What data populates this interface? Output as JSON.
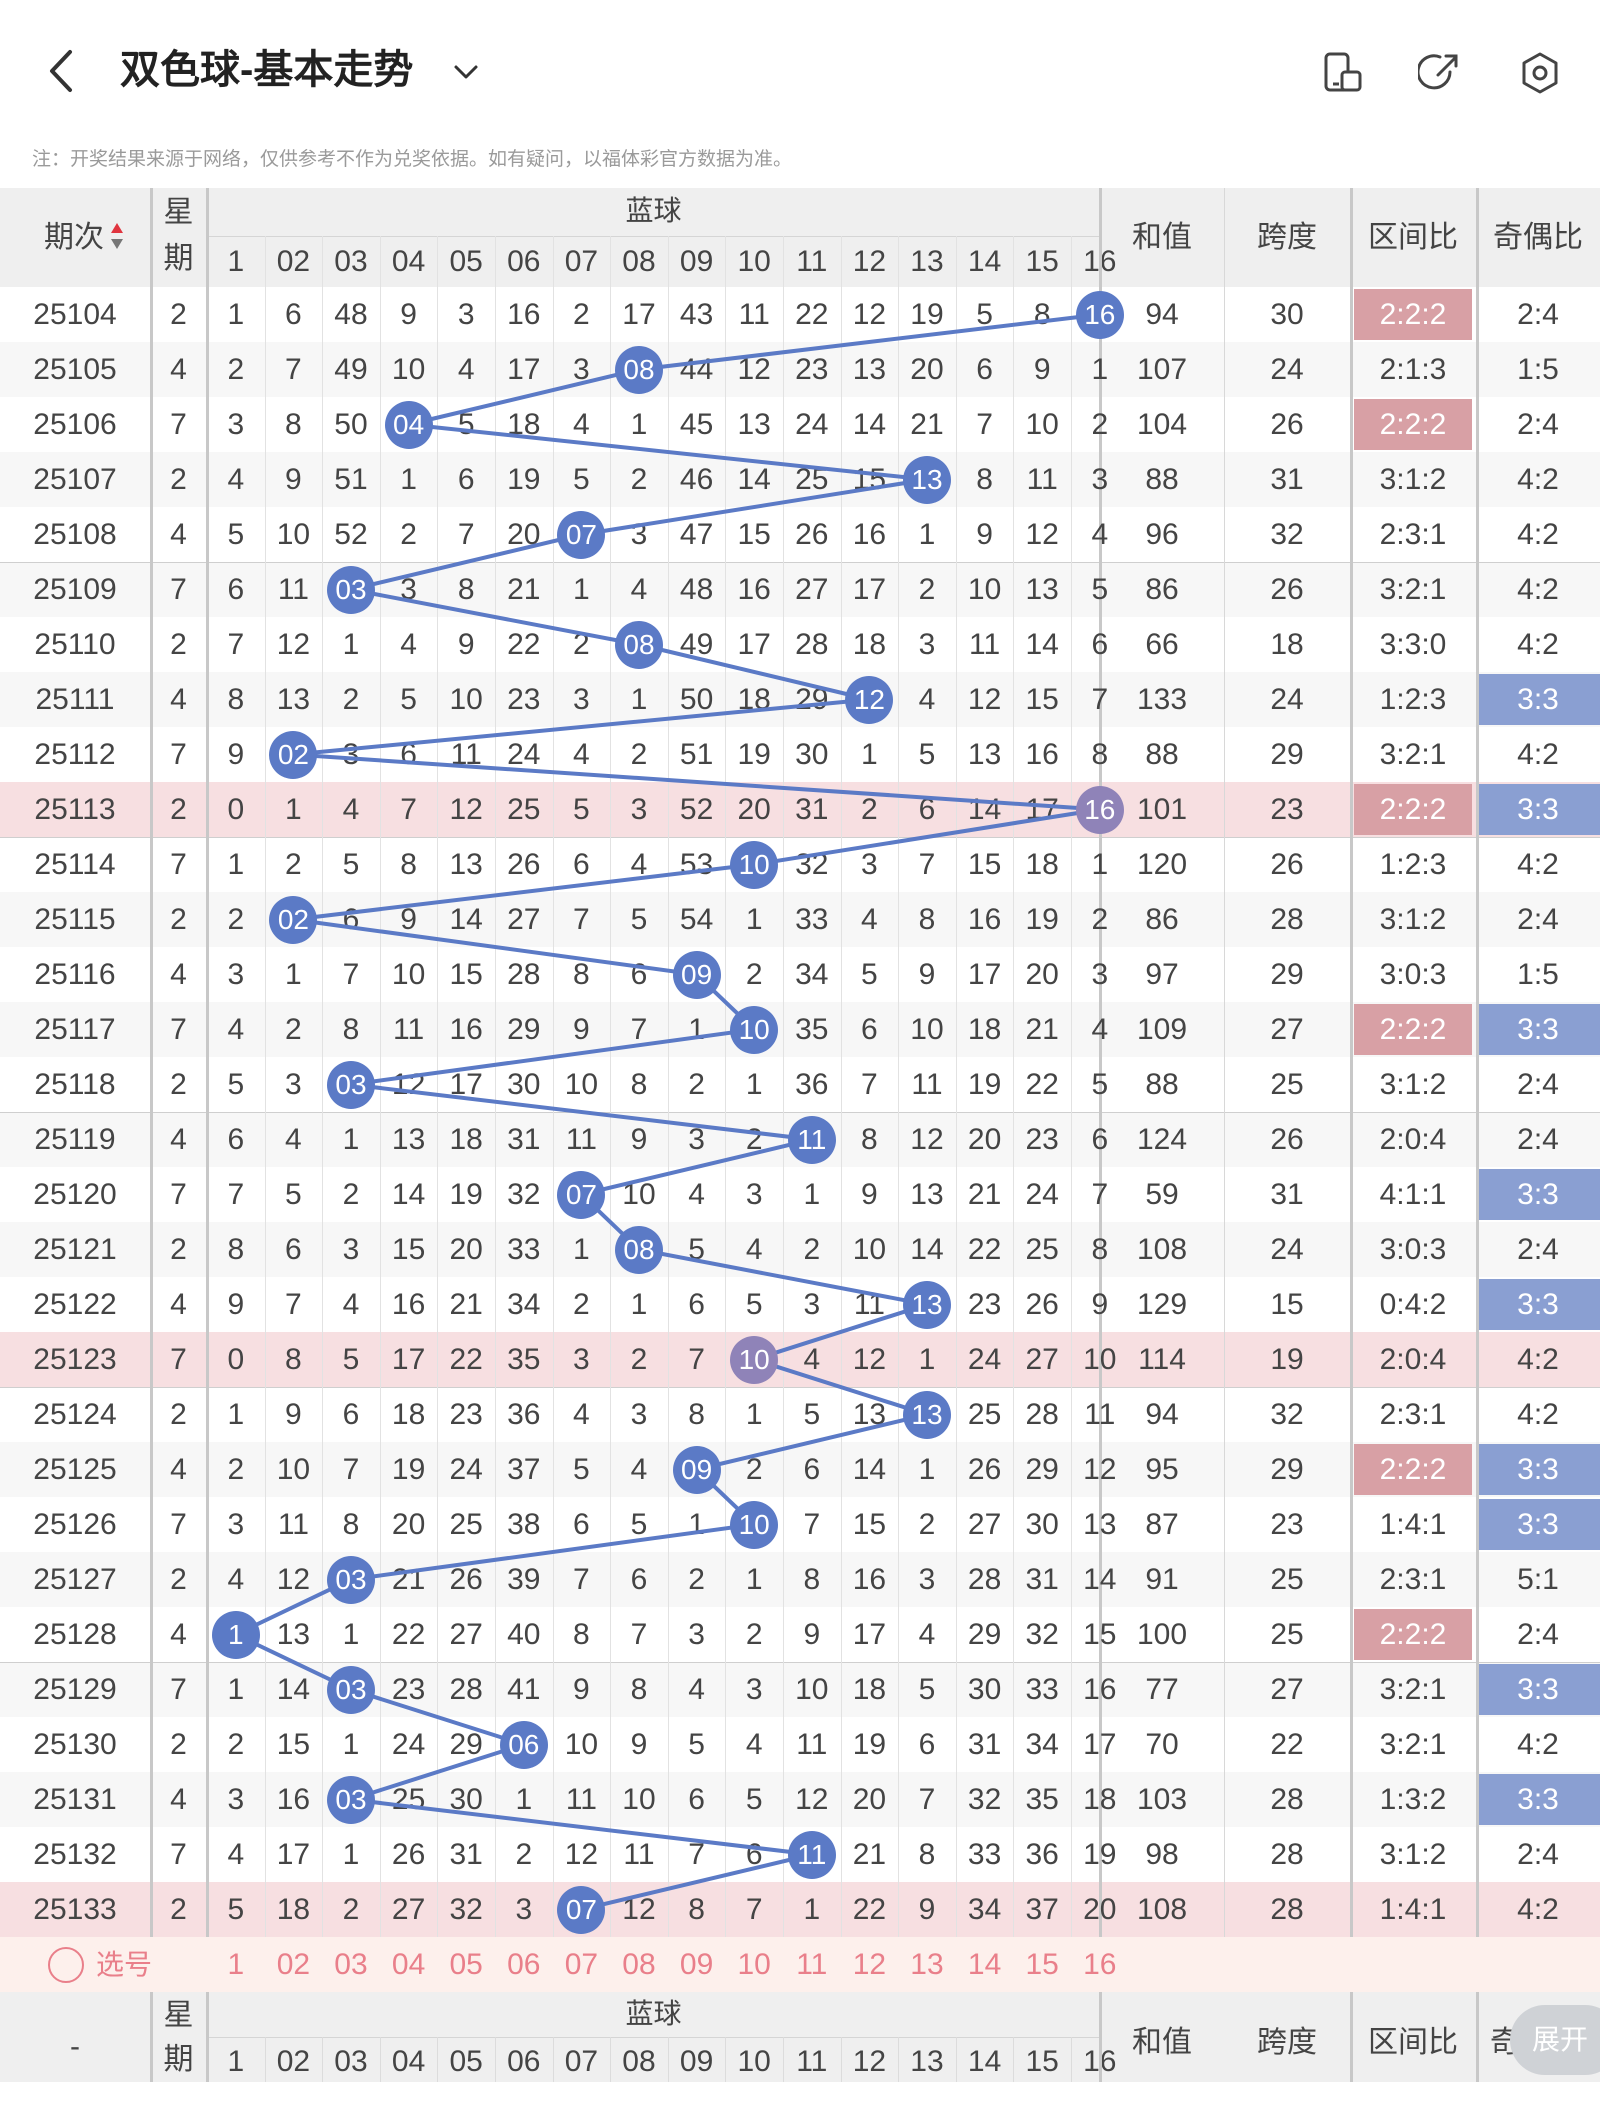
{
  "header": {
    "title": "双色球-基本走势",
    "note": "注：开奖结果来源于网络，仅供参考不作为兑奖依据。如有疑问，以福体彩官方数据为准。",
    "icons": [
      "back-icon",
      "chevron-down-icon",
      "device-icon",
      "share-icon",
      "settings-icon"
    ]
  },
  "table_header": {
    "issue": "期次",
    "week": [
      "星",
      "期"
    ],
    "blue_group": "蓝球",
    "sum": "和值",
    "span": "跨度",
    "zone_ratio": "区间比",
    "odd_even": "奇偶比"
  },
  "numbers": [
    "1",
    "02",
    "03",
    "04",
    "05",
    "06",
    "07",
    "08",
    "09",
    "10",
    "11",
    "12",
    "13",
    "14",
    "15",
    "16"
  ],
  "rows": [
    {
      "issue": "25104",
      "week": "2",
      "cells": [
        "1",
        "6",
        "48",
        "9",
        "3",
        "16",
        "2",
        "17",
        "43",
        "11",
        "22",
        "12",
        "19",
        "5",
        "8",
        "16"
      ],
      "hit": 16,
      "sum": "94",
      "span": "30",
      "zone": "2:2:2",
      "oe": "2:4",
      "zoneHL": true,
      "oeHL": false,
      "rowHL": false
    },
    {
      "issue": "25105",
      "week": "4",
      "cells": [
        "2",
        "7",
        "49",
        "10",
        "4",
        "17",
        "3",
        "08",
        "44",
        "12",
        "23",
        "13",
        "20",
        "6",
        "9",
        "1"
      ],
      "hit": 8,
      "sum": "107",
      "span": "24",
      "zone": "2:1:3",
      "oe": "1:5",
      "zoneHL": false,
      "oeHL": false,
      "rowHL": false
    },
    {
      "issue": "25106",
      "week": "7",
      "cells": [
        "3",
        "8",
        "50",
        "04",
        "5",
        "18",
        "4",
        "1",
        "45",
        "13",
        "24",
        "14",
        "21",
        "7",
        "10",
        "2"
      ],
      "hit": 4,
      "sum": "104",
      "span": "26",
      "zone": "2:2:2",
      "oe": "2:4",
      "zoneHL": true,
      "oeHL": false,
      "rowHL": false
    },
    {
      "issue": "25107",
      "week": "2",
      "cells": [
        "4",
        "9",
        "51",
        "1",
        "6",
        "19",
        "5",
        "2",
        "46",
        "14",
        "25",
        "15",
        "13",
        "8",
        "11",
        "3"
      ],
      "hit": 13,
      "sum": "88",
      "span": "31",
      "zone": "3:1:2",
      "oe": "4:2",
      "zoneHL": false,
      "oeHL": false,
      "rowHL": false
    },
    {
      "issue": "25108",
      "week": "4",
      "cells": [
        "5",
        "10",
        "52",
        "2",
        "7",
        "20",
        "07",
        "3",
        "47",
        "15",
        "26",
        "16",
        "1",
        "9",
        "12",
        "4"
      ],
      "hit": 7,
      "sum": "96",
      "span": "32",
      "zone": "2:3:1",
      "oe": "4:2",
      "zoneHL": false,
      "oeHL": false,
      "rowHL": false
    },
    {
      "issue": "25109",
      "week": "7",
      "cells": [
        "6",
        "11",
        "03",
        "3",
        "8",
        "21",
        "1",
        "4",
        "48",
        "16",
        "27",
        "17",
        "2",
        "10",
        "13",
        "5"
      ],
      "hit": 3,
      "sum": "86",
      "span": "26",
      "zone": "3:2:1",
      "oe": "4:2",
      "zoneHL": false,
      "oeHL": false,
      "rowHL": false
    },
    {
      "issue": "25110",
      "week": "2",
      "cells": [
        "7",
        "12",
        "1",
        "4",
        "9",
        "22",
        "2",
        "08",
        "49",
        "17",
        "28",
        "18",
        "3",
        "11",
        "14",
        "6"
      ],
      "hit": 8,
      "sum": "66",
      "span": "18",
      "zone": "3:3:0",
      "oe": "4:2",
      "zoneHL": false,
      "oeHL": false,
      "rowHL": false
    },
    {
      "issue": "25111",
      "week": "4",
      "cells": [
        "8",
        "13",
        "2",
        "5",
        "10",
        "23",
        "3",
        "1",
        "50",
        "18",
        "29",
        "12",
        "4",
        "12",
        "15",
        "7"
      ],
      "hit": 12,
      "sum": "133",
      "span": "24",
      "zone": "1:2:3",
      "oe": "3:3",
      "zoneHL": false,
      "oeHL": true,
      "rowHL": false
    },
    {
      "issue": "25112",
      "week": "7",
      "cells": [
        "9",
        "02",
        "3",
        "6",
        "11",
        "24",
        "4",
        "2",
        "51",
        "19",
        "30",
        "1",
        "5",
        "13",
        "16",
        "8"
      ],
      "hit": 2,
      "sum": "88",
      "span": "29",
      "zone": "3:2:1",
      "oe": "4:2",
      "zoneHL": false,
      "oeHL": false,
      "rowHL": false
    },
    {
      "issue": "25113",
      "week": "2",
      "cells": [
        "0",
        "1",
        "4",
        "7",
        "12",
        "25",
        "5",
        "3",
        "52",
        "20",
        "31",
        "2",
        "6",
        "14",
        "17",
        "16"
      ],
      "hit": 16,
      "sum": "101",
      "span": "23",
      "zone": "2:2:2",
      "oe": "3:3",
      "zoneHL": true,
      "oeHL": true,
      "rowHL": true
    },
    {
      "issue": "25114",
      "week": "7",
      "cells": [
        "1",
        "2",
        "5",
        "8",
        "13",
        "26",
        "6",
        "4",
        "53",
        "10",
        "32",
        "3",
        "7",
        "15",
        "18",
        "1"
      ],
      "hit": 10,
      "sum": "120",
      "span": "26",
      "zone": "1:2:3",
      "oe": "4:2",
      "zoneHL": false,
      "oeHL": false,
      "rowHL": false
    },
    {
      "issue": "25115",
      "week": "2",
      "cells": [
        "2",
        "02",
        "6",
        "9",
        "14",
        "27",
        "7",
        "5",
        "54",
        "1",
        "33",
        "4",
        "8",
        "16",
        "19",
        "2"
      ],
      "hit": 2,
      "sum": "86",
      "span": "28",
      "zone": "3:1:2",
      "oe": "2:4",
      "zoneHL": false,
      "oeHL": false,
      "rowHL": false
    },
    {
      "issue": "25116",
      "week": "4",
      "cells": [
        "3",
        "1",
        "7",
        "10",
        "15",
        "28",
        "8",
        "6",
        "09",
        "2",
        "34",
        "5",
        "9",
        "17",
        "20",
        "3"
      ],
      "hit": 9,
      "sum": "97",
      "span": "29",
      "zone": "3:0:3",
      "oe": "1:5",
      "zoneHL": false,
      "oeHL": false,
      "rowHL": false
    },
    {
      "issue": "25117",
      "week": "7",
      "cells": [
        "4",
        "2",
        "8",
        "11",
        "16",
        "29",
        "9",
        "7",
        "1",
        "10",
        "35",
        "6",
        "10",
        "18",
        "21",
        "4"
      ],
      "hit": 10,
      "sum": "109",
      "span": "27",
      "zone": "2:2:2",
      "oe": "3:3",
      "zoneHL": true,
      "oeHL": true,
      "rowHL": false
    },
    {
      "issue": "25118",
      "week": "2",
      "cells": [
        "5",
        "3",
        "03",
        "12",
        "17",
        "30",
        "10",
        "8",
        "2",
        "1",
        "36",
        "7",
        "11",
        "19",
        "22",
        "5"
      ],
      "hit": 3,
      "sum": "88",
      "span": "25",
      "zone": "3:1:2",
      "oe": "2:4",
      "zoneHL": false,
      "oeHL": false,
      "rowHL": false
    },
    {
      "issue": "25119",
      "week": "4",
      "cells": [
        "6",
        "4",
        "1",
        "13",
        "18",
        "31",
        "11",
        "9",
        "3",
        "2",
        "11",
        "8",
        "12",
        "20",
        "23",
        "6"
      ],
      "hit": 11,
      "sum": "124",
      "span": "26",
      "zone": "2:0:4",
      "oe": "2:4",
      "zoneHL": false,
      "oeHL": false,
      "rowHL": false
    },
    {
      "issue": "25120",
      "week": "7",
      "cells": [
        "7",
        "5",
        "2",
        "14",
        "19",
        "32",
        "07",
        "10",
        "4",
        "3",
        "1",
        "9",
        "13",
        "21",
        "24",
        "7"
      ],
      "hit": 7,
      "sum": "59",
      "span": "31",
      "zone": "4:1:1",
      "oe": "3:3",
      "zoneHL": false,
      "oeHL": true,
      "rowHL": false
    },
    {
      "issue": "25121",
      "week": "2",
      "cells": [
        "8",
        "6",
        "3",
        "15",
        "20",
        "33",
        "1",
        "08",
        "5",
        "4",
        "2",
        "10",
        "14",
        "22",
        "25",
        "8"
      ],
      "hit": 8,
      "sum": "108",
      "span": "24",
      "zone": "3:0:3",
      "oe": "2:4",
      "zoneHL": false,
      "oeHL": false,
      "rowHL": false
    },
    {
      "issue": "25122",
      "week": "4",
      "cells": [
        "9",
        "7",
        "4",
        "16",
        "21",
        "34",
        "2",
        "1",
        "6",
        "5",
        "3",
        "11",
        "13",
        "23",
        "26",
        "9"
      ],
      "hit": 13,
      "sum": "129",
      "span": "15",
      "zone": "0:4:2",
      "oe": "3:3",
      "zoneHL": false,
      "oeHL": true,
      "rowHL": false
    },
    {
      "issue": "25123",
      "week": "7",
      "cells": [
        "0",
        "8",
        "5",
        "17",
        "22",
        "35",
        "3",
        "2",
        "7",
        "10",
        "4",
        "12",
        "1",
        "24",
        "27",
        "10"
      ],
      "hit": 10,
      "sum": "114",
      "span": "19",
      "zone": "2:0:4",
      "oe": "4:2",
      "zoneHL": false,
      "oeHL": false,
      "rowHL": true
    },
    {
      "issue": "25124",
      "week": "2",
      "cells": [
        "1",
        "9",
        "6",
        "18",
        "23",
        "36",
        "4",
        "3",
        "8",
        "1",
        "5",
        "13",
        "13",
        "25",
        "28",
        "11"
      ],
      "hit": 13,
      "sum": "94",
      "span": "32",
      "zone": "2:3:1",
      "oe": "4:2",
      "zoneHL": false,
      "oeHL": false,
      "rowHL": false
    },
    {
      "issue": "25125",
      "week": "4",
      "cells": [
        "2",
        "10",
        "7",
        "19",
        "24",
        "37",
        "5",
        "4",
        "09",
        "2",
        "6",
        "14",
        "1",
        "26",
        "29",
        "12"
      ],
      "hit": 9,
      "sum": "95",
      "span": "29",
      "zone": "2:2:2",
      "oe": "3:3",
      "zoneHL": true,
      "oeHL": true,
      "rowHL": false
    },
    {
      "issue": "25126",
      "week": "7",
      "cells": [
        "3",
        "11",
        "8",
        "20",
        "25",
        "38",
        "6",
        "5",
        "1",
        "10",
        "7",
        "15",
        "2",
        "27",
        "30",
        "13"
      ],
      "hit": 10,
      "sum": "87",
      "span": "23",
      "zone": "1:4:1",
      "oe": "3:3",
      "zoneHL": false,
      "oeHL": true,
      "rowHL": false
    },
    {
      "issue": "25127",
      "week": "2",
      "cells": [
        "4",
        "12",
        "03",
        "21",
        "26",
        "39",
        "7",
        "6",
        "2",
        "1",
        "8",
        "16",
        "3",
        "28",
        "31",
        "14"
      ],
      "hit": 3,
      "sum": "91",
      "span": "25",
      "zone": "2:3:1",
      "oe": "5:1",
      "zoneHL": false,
      "oeHL": false,
      "rowHL": false
    },
    {
      "issue": "25128",
      "week": "4",
      "cells": [
        "1",
        "13",
        "1",
        "22",
        "27",
        "40",
        "8",
        "7",
        "3",
        "2",
        "9",
        "17",
        "4",
        "29",
        "32",
        "15"
      ],
      "hit": 1,
      "sum": "100",
      "span": "25",
      "zone": "2:2:2",
      "oe": "2:4",
      "zoneHL": true,
      "oeHL": false,
      "rowHL": false
    },
    {
      "issue": "25129",
      "week": "7",
      "cells": [
        "1",
        "14",
        "03",
        "23",
        "28",
        "41",
        "9",
        "8",
        "4",
        "3",
        "10",
        "18",
        "5",
        "30",
        "33",
        "16"
      ],
      "hit": 3,
      "sum": "77",
      "span": "27",
      "zone": "3:2:1",
      "oe": "3:3",
      "zoneHL": false,
      "oeHL": true,
      "rowHL": false
    },
    {
      "issue": "25130",
      "week": "2",
      "cells": [
        "2",
        "15",
        "1",
        "24",
        "29",
        "06",
        "10",
        "9",
        "5",
        "4",
        "11",
        "19",
        "6",
        "31",
        "34",
        "17"
      ],
      "hit": 6,
      "sum": "70",
      "span": "22",
      "zone": "3:2:1",
      "oe": "4:2",
      "zoneHL": false,
      "oeHL": false,
      "rowHL": false
    },
    {
      "issue": "25131",
      "week": "4",
      "cells": [
        "3",
        "16",
        "03",
        "25",
        "30",
        "1",
        "11",
        "10",
        "6",
        "5",
        "12",
        "20",
        "7",
        "32",
        "35",
        "18"
      ],
      "hit": 3,
      "sum": "103",
      "span": "28",
      "zone": "1:3:2",
      "oe": "3:3",
      "zoneHL": false,
      "oeHL": true,
      "rowHL": false
    },
    {
      "issue": "25132",
      "week": "7",
      "cells": [
        "4",
        "17",
        "1",
        "26",
        "31",
        "2",
        "12",
        "11",
        "7",
        "6",
        "11",
        "21",
        "8",
        "33",
        "36",
        "19"
      ],
      "hit": 11,
      "sum": "98",
      "span": "28",
      "zone": "3:1:2",
      "oe": "2:4",
      "zoneHL": false,
      "oeHL": false,
      "rowHL": false
    },
    {
      "issue": "25133",
      "week": "2",
      "cells": [
        "5",
        "18",
        "2",
        "27",
        "32",
        "3",
        "07",
        "12",
        "8",
        "7",
        "1",
        "22",
        "9",
        "34",
        "37",
        "20"
      ],
      "hit": 7,
      "sum": "108",
      "span": "28",
      "zone": "1:4:1",
      "oe": "4:2",
      "zoneHL": false,
      "oeHL": false,
      "rowHL": true
    }
  ],
  "select_row": {
    "label": "选号"
  },
  "footer_header": {
    "issue": "-",
    "week": [
      "星",
      "期"
    ],
    "blue_group": "蓝球",
    "sum": "和值",
    "span": "跨度",
    "zone_ratio": "区间比",
    "odd_even": "奇"
  },
  "expand_button": "展开",
  "colors": {
    "ball": "#5b7ac6",
    "ball_dim": "#8f83b8",
    "row_highlight": "#f7dfe1",
    "zone_highlight": "#d8a0a5",
    "oe_highlight": "#8a9fd2",
    "header_bg": "#efefef",
    "select_row_bg": "#fdf0ec",
    "select_text": "#e97f8a"
  }
}
